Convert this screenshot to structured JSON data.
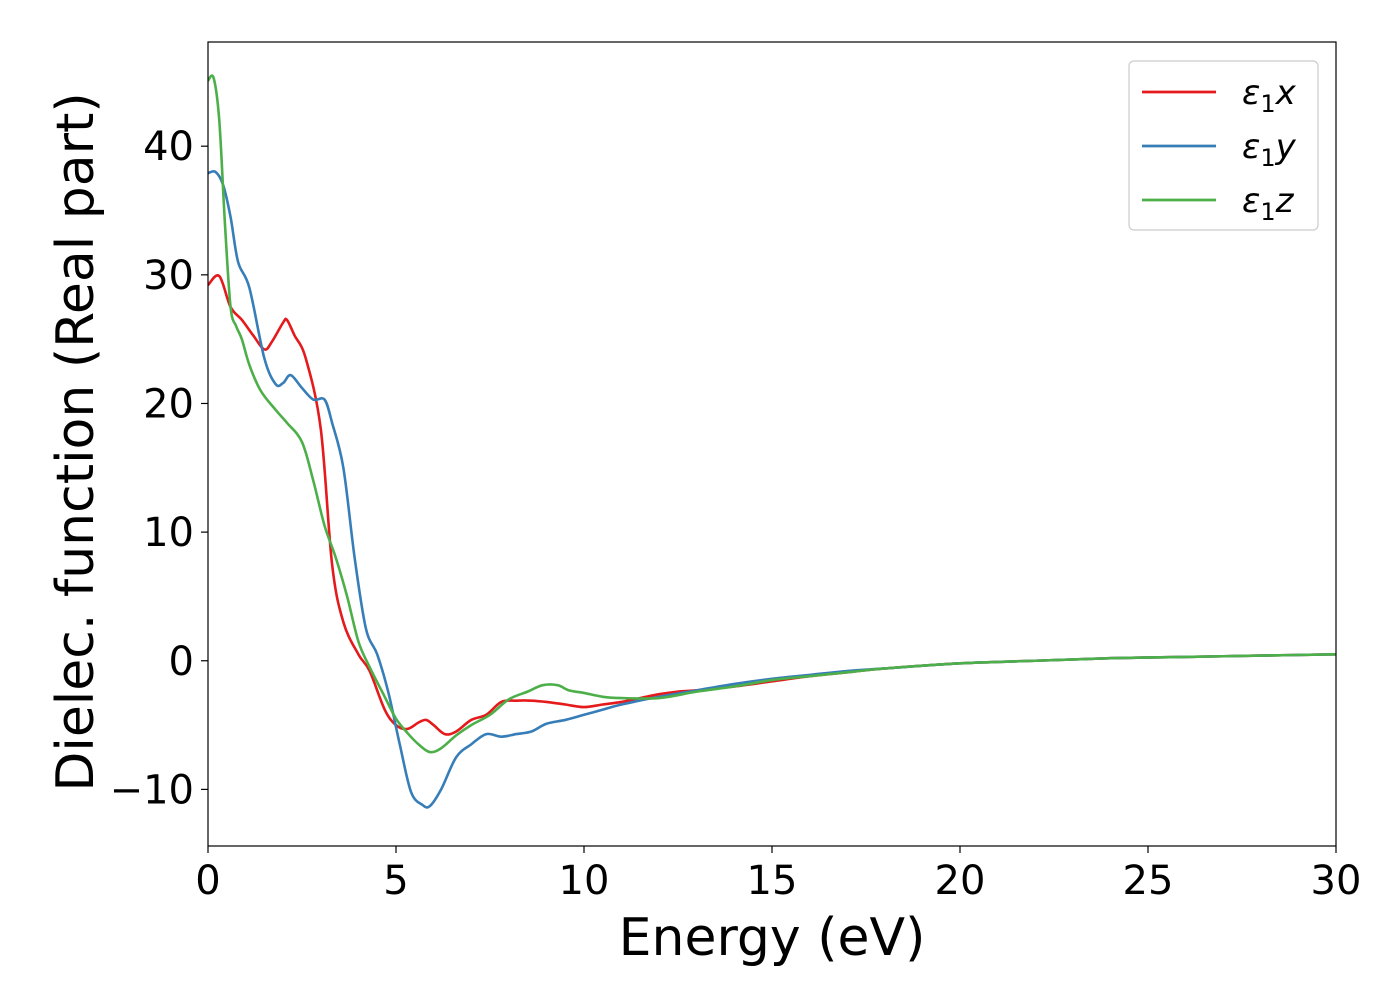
{
  "chart_data": {
    "type": "line",
    "title": "",
    "xlabel": "Energy (eV)",
    "ylabel": "Dielec. function (Real part)",
    "xlim": [
      0,
      30
    ],
    "ylim": [
      -14.4,
      48.1
    ],
    "xticks": [
      0,
      5,
      10,
      15,
      20,
      25,
      30
    ],
    "yticks": [
      -10,
      0,
      10,
      20,
      30,
      40
    ],
    "xtick_labels": [
      "0",
      "5",
      "10",
      "15",
      "20",
      "25",
      "30"
    ],
    "ytick_labels": [
      "−10",
      "0",
      "10",
      "20",
      "30",
      "40"
    ],
    "grid": false,
    "legend_position": "top-right",
    "series": [
      {
        "name": "ε₁x",
        "legend_base": "ε",
        "legend_sub": "1",
        "legend_var": "x",
        "color": "#e41a1c",
        "x": [
          0,
          0.3,
          0.6,
          0.9,
          1.2,
          1.5,
          1.7,
          2.0,
          2.1,
          2.3,
          2.6,
          3.0,
          3.3,
          3.6,
          4.0,
          4.3,
          4.7,
          5.0,
          5.3,
          5.6,
          5.8,
          6.0,
          6.3,
          6.6,
          7.0,
          7.4,
          7.8,
          8.2,
          8.6,
          9.0,
          9.5,
          10.0,
          10.5,
          11.0,
          11.5,
          12.0,
          12.5,
          13.0,
          14.0,
          15.0,
          16.0,
          17.0,
          18.0,
          20.0,
          22.0,
          24.0,
          26.0,
          28.0,
          30.0
        ],
        "y": [
          29.2,
          29.9,
          27.5,
          26.5,
          25.3,
          24.2,
          24.8,
          26.3,
          26.5,
          25.3,
          23.5,
          18.0,
          7.5,
          3.0,
          0.5,
          -0.8,
          -3.8,
          -5.0,
          -5.3,
          -4.8,
          -4.6,
          -5.0,
          -5.7,
          -5.5,
          -4.6,
          -4.2,
          -3.2,
          -3.1,
          -3.1,
          -3.2,
          -3.4,
          -3.6,
          -3.4,
          -3.2,
          -2.9,
          -2.6,
          -2.4,
          -2.3,
          -2.0,
          -1.6,
          -1.2,
          -0.9,
          -0.6,
          -0.2,
          0.0,
          0.2,
          0.3,
          0.4,
          0.5
        ]
      },
      {
        "name": "ε₁y",
        "legend_base": "ε",
        "legend_sub": "1",
        "legend_var": "y",
        "color": "#377eb8",
        "x": [
          0,
          0.2,
          0.4,
          0.6,
          0.8,
          1.1,
          1.5,
          1.8,
          2.0,
          2.2,
          2.5,
          2.8,
          3.1,
          3.3,
          3.6,
          3.9,
          4.2,
          4.5,
          4.8,
          5.1,
          5.4,
          5.7,
          5.9,
          6.2,
          6.6,
          7.0,
          7.4,
          7.8,
          8.2,
          8.6,
          9.0,
          9.5,
          10.0,
          10.5,
          11.0,
          12.0,
          13.0,
          14.0,
          15.0,
          16.0,
          17.0,
          18.0,
          20.0,
          22.0,
          24.0,
          26.0,
          28.0,
          30.0
        ],
        "y": [
          37.9,
          38.0,
          37.0,
          34.5,
          31.0,
          29.0,
          23.5,
          21.5,
          21.6,
          22.2,
          21.2,
          20.3,
          20.3,
          18.5,
          15.0,
          8.0,
          2.5,
          0.5,
          -2.5,
          -6.5,
          -10.2,
          -11.2,
          -11.3,
          -10.0,
          -7.5,
          -6.5,
          -5.7,
          -5.9,
          -5.7,
          -5.5,
          -4.9,
          -4.6,
          -4.2,
          -3.8,
          -3.4,
          -2.8,
          -2.3,
          -1.8,
          -1.4,
          -1.1,
          -0.8,
          -0.6,
          -0.2,
          0.0,
          0.2,
          0.3,
          0.4,
          0.5
        ]
      },
      {
        "name": "ε₁z",
        "legend_base": "ε",
        "legend_sub": "1",
        "legend_var": "z",
        "color": "#4daf4a",
        "x": [
          0,
          0.15,
          0.3,
          0.45,
          0.6,
          0.75,
          0.9,
          1.1,
          1.4,
          1.8,
          2.1,
          2.5,
          2.8,
          3.1,
          3.4,
          3.7,
          4.0,
          4.3,
          4.7,
          5.0,
          5.3,
          5.6,
          5.9,
          6.2,
          6.6,
          7.0,
          7.5,
          8.0,
          8.5,
          8.9,
          9.3,
          9.6,
          10.0,
          10.5,
          11.0,
          12.0,
          13.0,
          14.0,
          15.0,
          16.0,
          17.0,
          18.0,
          20.0,
          22.0,
          24.0,
          26.0,
          28.0,
          30.0
        ],
        "y": [
          45.1,
          45.3,
          42.0,
          34.0,
          27.5,
          26.0,
          25.0,
          23.0,
          21.0,
          19.5,
          18.5,
          17.0,
          14.0,
          10.5,
          8.0,
          5.0,
          1.5,
          -0.5,
          -2.8,
          -4.5,
          -5.6,
          -6.5,
          -7.1,
          -6.8,
          -5.8,
          -5.0,
          -4.2,
          -3.0,
          -2.4,
          -1.9,
          -1.9,
          -2.3,
          -2.5,
          -2.8,
          -2.9,
          -2.9,
          -2.4,
          -2.0,
          -1.5,
          -1.2,
          -0.9,
          -0.6,
          -0.2,
          0.0,
          0.2,
          0.3,
          0.4,
          0.5
        ]
      }
    ]
  }
}
